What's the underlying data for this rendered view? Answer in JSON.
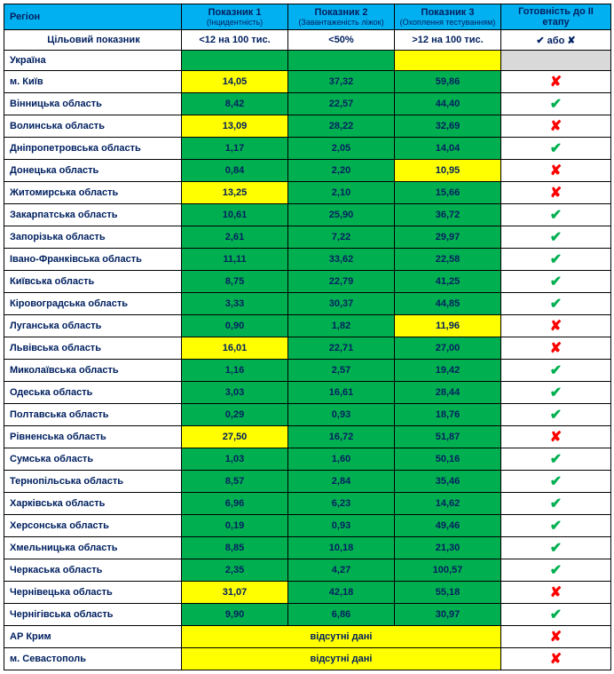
{
  "header": {
    "region": "Регіон",
    "ind1": "Показник 1",
    "ind1_sub": "(Інцидентність)",
    "ind2": "Показник 2",
    "ind2_sub": "(Завантаженість ліжок)",
    "ind3": "Показник 3",
    "ind3_sub": "(Охоплення тестуванням)",
    "ready": "Готовність до ІІ етапу"
  },
  "target": {
    "label": "Цільовий показник",
    "ind1": "<12 на 100 тис.",
    "ind2": "<50%",
    "ind3": ">12 на 100 тис.",
    "ready": "✔ або ✘"
  },
  "ukraine_label": "Україна",
  "nodata_label": "відсутні дані",
  "check": "✔",
  "cross": "✘",
  "colors": {
    "green": "#00b050",
    "yellow": "#ffff00",
    "grey": "#d9d9d9",
    "header_bg": "#00b0f0",
    "text_dark": "#002060",
    "ok": "#00b050",
    "no": "#ff0000"
  },
  "rows": [
    {
      "region": "м. Київ",
      "v1": "14,05",
      "c1": "yellow",
      "v2": "37,32",
      "c2": "green",
      "v3": "59,86",
      "c3": "green",
      "ready": "no"
    },
    {
      "region": "Вінницька область",
      "v1": "8,42",
      "c1": "green",
      "v2": "22,57",
      "c2": "green",
      "v3": "44,40",
      "c3": "green",
      "ready": "ok"
    },
    {
      "region": "Волинська область",
      "v1": "13,09",
      "c1": "yellow",
      "v2": "28,22",
      "c2": "green",
      "v3": "32,69",
      "c3": "green",
      "ready": "no"
    },
    {
      "region": "Дніпропетровська область",
      "v1": "1,17",
      "c1": "green",
      "v2": "2,05",
      "c2": "green",
      "v3": "14,04",
      "c3": "green",
      "ready": "ok"
    },
    {
      "region": "Донецька область",
      "v1": "0,84",
      "c1": "green",
      "v2": "2,20",
      "c2": "green",
      "v3": "10,95",
      "c3": "yellow",
      "ready": "no"
    },
    {
      "region": "Житомирська область",
      "v1": "13,25",
      "c1": "yellow",
      "v2": "2,10",
      "c2": "green",
      "v3": "15,66",
      "c3": "green",
      "ready": "no"
    },
    {
      "region": "Закарпатська область",
      "v1": "10,61",
      "c1": "green",
      "v2": "25,90",
      "c2": "green",
      "v3": "36,72",
      "c3": "green",
      "ready": "ok"
    },
    {
      "region": "Запорізька область",
      "v1": "2,61",
      "c1": "green",
      "v2": "7,22",
      "c2": "green",
      "v3": "29,97",
      "c3": "green",
      "ready": "ok"
    },
    {
      "region": "Івано-Франківська область",
      "v1": "11,11",
      "c1": "green",
      "v2": "33,62",
      "c2": "green",
      "v3": "22,58",
      "c3": "green",
      "ready": "ok"
    },
    {
      "region": "Київська область",
      "v1": "8,75",
      "c1": "green",
      "v2": "22,79",
      "c2": "green",
      "v3": "41,25",
      "c3": "green",
      "ready": "ok"
    },
    {
      "region": "Кіровоградська область",
      "v1": "3,33",
      "c1": "green",
      "v2": "30,37",
      "c2": "green",
      "v3": "44,85",
      "c3": "green",
      "ready": "ok"
    },
    {
      "region": "Луганська область",
      "v1": "0,90",
      "c1": "green",
      "v2": "1,82",
      "c2": "green",
      "v3": "11,96",
      "c3": "yellow",
      "ready": "no"
    },
    {
      "region": "Львівська область",
      "v1": "16,01",
      "c1": "yellow",
      "v2": "22,71",
      "c2": "green",
      "v3": "27,00",
      "c3": "green",
      "ready": "no"
    },
    {
      "region": "Миколаївська область",
      "v1": "1,16",
      "c1": "green",
      "v2": "2,57",
      "c2": "green",
      "v3": "19,42",
      "c3": "green",
      "ready": "ok"
    },
    {
      "region": "Одеська область",
      "v1": "3,03",
      "c1": "green",
      "v2": "16,61",
      "c2": "green",
      "v3": "28,44",
      "c3": "green",
      "ready": "ok"
    },
    {
      "region": "Полтавська область",
      "v1": "0,29",
      "c1": "green",
      "v2": "0,93",
      "c2": "green",
      "v3": "18,76",
      "c3": "green",
      "ready": "ok"
    },
    {
      "region": "Рівненська область",
      "v1": "27,50",
      "c1": "yellow",
      "v2": "16,72",
      "c2": "green",
      "v3": "51,87",
      "c3": "green",
      "ready": "no"
    },
    {
      "region": "Сумська область",
      "v1": "1,03",
      "c1": "green",
      "v2": "1,60",
      "c2": "green",
      "v3": "50,16",
      "c3": "green",
      "ready": "ok"
    },
    {
      "region": "Тернопільська область",
      "v1": "8,57",
      "c1": "green",
      "v2": "2,84",
      "c2": "green",
      "v3": "35,46",
      "c3": "green",
      "ready": "ok"
    },
    {
      "region": "Харківська область",
      "v1": "6,96",
      "c1": "green",
      "v2": "6,23",
      "c2": "green",
      "v3": "14,62",
      "c3": "green",
      "ready": "ok"
    },
    {
      "region": "Херсонська область",
      "v1": "0,19",
      "c1": "green",
      "v2": "0,93",
      "c2": "green",
      "v3": "49,46",
      "c3": "green",
      "ready": "ok"
    },
    {
      "region": "Хмельницька область",
      "v1": "8,85",
      "c1": "green",
      "v2": "10,18",
      "c2": "green",
      "v3": "21,30",
      "c3": "green",
      "ready": "ok"
    },
    {
      "region": "Черкаська область",
      "v1": "2,35",
      "c1": "green",
      "v2": "4,27",
      "c2": "green",
      "v3": "100,57",
      "c3": "green",
      "ready": "ok"
    },
    {
      "region": "Чернівецька область",
      "v1": "31,07",
      "c1": "yellow",
      "v2": "42,18",
      "c2": "green",
      "v3": "55,18",
      "c3": "green",
      "ready": "no"
    },
    {
      "region": "Чернігівська область",
      "v1": "9,90",
      "c1": "green",
      "v2": "6,86",
      "c2": "green",
      "v3": "30,97",
      "c3": "green",
      "ready": "ok"
    }
  ],
  "nodata_rows": [
    {
      "region": "АР Крим"
    },
    {
      "region": "м. Севастополь"
    }
  ]
}
